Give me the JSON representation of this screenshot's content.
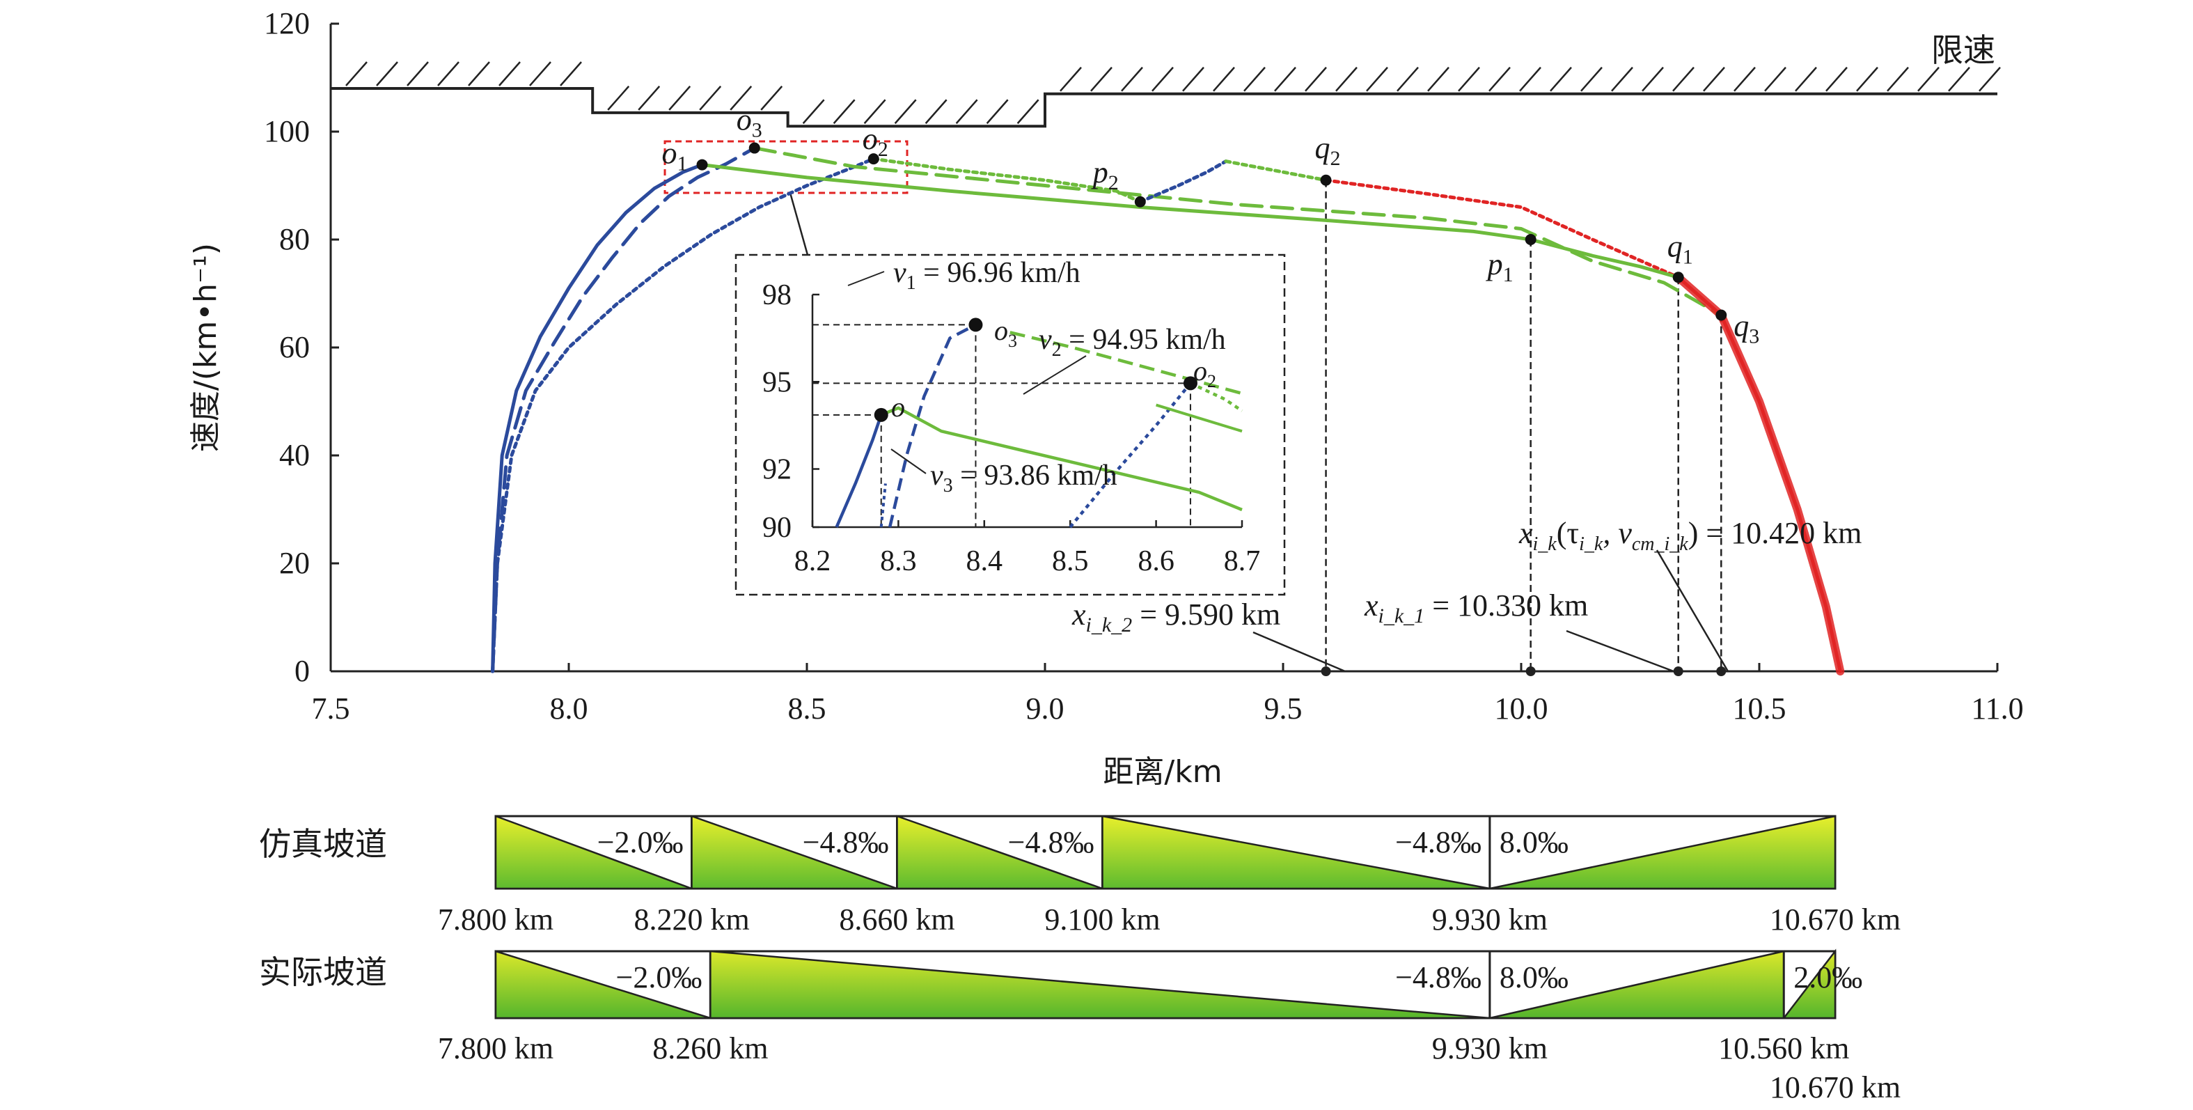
{
  "chart_data": {
    "type": "line",
    "xlabel": "距离/km",
    "ylabel": "速度/(km•h⁻¹)",
    "xlim": [
      7.5,
      11.0
    ],
    "ylim": [
      0,
      120
    ],
    "xticks": [
      7.5,
      8.0,
      8.5,
      9.0,
      9.5,
      10.0,
      10.5,
      11.0
    ],
    "xtick_labels": [
      "7.5",
      "8.0",
      "8.5",
      "9.0",
      "9.5",
      "10.0",
      "10.5",
      "11.0"
    ],
    "yticks": [
      0,
      20,
      40,
      60,
      80,
      100,
      120
    ],
    "ytick_labels": [
      "0",
      "20",
      "40",
      "60",
      "80",
      "100",
      "120"
    ],
    "speed_limit": {
      "label": "限速",
      "segments": [
        {
          "x0": 7.5,
          "x1": 8.05,
          "v": 108
        },
        {
          "x0": 8.05,
          "x1": 8.46,
          "v": 103.5
        },
        {
          "x0": 8.46,
          "x1": 9.0,
          "v": 101
        },
        {
          "x0": 9.0,
          "x1": 11.0,
          "v": 107
        }
      ]
    },
    "series": [
      {
        "name": "curve-1-accel",
        "color": "#2b4a9c",
        "dash": "solid",
        "x": [
          7.84,
          7.845,
          7.86,
          7.89,
          7.94,
          8.0,
          8.06,
          8.12,
          8.18,
          8.24,
          8.28
        ],
        "y": [
          0,
          20,
          40,
          52,
          62,
          71,
          79,
          85,
          89.5,
          92.5,
          93.86
        ]
      },
      {
        "name": "curve-3-accel",
        "color": "#2b4a9c",
        "dash": "longdash",
        "x": [
          7.84,
          7.85,
          7.87,
          7.91,
          7.97,
          8.03,
          8.09,
          8.15,
          8.21,
          8.27,
          8.33,
          8.39
        ],
        "y": [
          0,
          20,
          40,
          52,
          61,
          69.5,
          76.5,
          83,
          88,
          91.5,
          94,
          96.96
        ]
      },
      {
        "name": "curve-2-accel",
        "color": "#2b4a9c",
        "dash": "dotted",
        "x": [
          7.84,
          7.85,
          7.88,
          7.93,
          8.0,
          8.1,
          8.2,
          8.3,
          8.4,
          8.5,
          8.6,
          8.64
        ],
        "y": [
          0,
          20,
          40,
          52,
          60,
          68,
          75,
          81,
          86,
          90,
          93.5,
          94.95
        ]
      },
      {
        "name": "curve-1-cruise",
        "color": "#6dbb3c",
        "dash": "solid",
        "x": [
          8.28,
          8.5,
          8.8,
          9.2,
          9.6,
          9.9,
          10.02
        ],
        "y": [
          93.86,
          91.5,
          89,
          86,
          83.5,
          81.5,
          80
        ]
      },
      {
        "name": "curve-3-cruise",
        "color": "#6dbb3c",
        "dash": "longdash",
        "x": [
          8.39,
          8.6,
          9.0,
          9.4,
          9.8,
          10.0,
          10.15,
          10.3,
          10.42
        ],
        "y": [
          96.96,
          93.5,
          90,
          86.5,
          84,
          82,
          76,
          72,
          66
        ]
      },
      {
        "name": "curve-2-cruise",
        "color": "#6dbb3c",
        "dash": "dotted",
        "x": [
          8.64,
          8.8,
          9.0,
          9.15,
          9.2
        ],
        "y": [
          94.95,
          93,
          91,
          89,
          87
        ]
      },
      {
        "name": "curve-2-reaccel",
        "color": "#2b4a9c",
        "dash": "dotted",
        "x": [
          9.2,
          9.28,
          9.34,
          9.38
        ],
        "y": [
          87,
          90,
          92.5,
          94.5
        ]
      },
      {
        "name": "curve-2-coast",
        "color": "#6dbb3c",
        "dash": "dotted",
        "x": [
          9.38,
          9.5,
          9.59
        ],
        "y": [
          94.5,
          92.5,
          91
        ]
      },
      {
        "name": "curve-2-brake-approach",
        "color": "#e02424",
        "dash": "dotted",
        "x": [
          9.59,
          9.8,
          10.0,
          10.15,
          10.33
        ],
        "y": [
          91,
          88.5,
          86,
          80,
          73
        ]
      },
      {
        "name": "curve-1-coast",
        "color": "#6dbb3c",
        "dash": "solid",
        "x": [
          10.02,
          10.15,
          10.25,
          10.33
        ],
        "y": [
          80,
          77,
          75,
          73
        ]
      },
      {
        "name": "braking-envelope",
        "color": "#e02424",
        "dash": "solid",
        "x": [
          10.33,
          10.42,
          10.5,
          10.58,
          10.64,
          10.67
        ],
        "y": [
          73,
          66,
          50,
          30,
          12,
          0
        ]
      }
    ],
    "points": [
      {
        "label": "o",
        "sub": "1",
        "x": 8.28,
        "y": 93.86
      },
      {
        "label": "o",
        "sub": "3",
        "x": 8.39,
        "y": 96.96
      },
      {
        "label": "o",
        "sub": "2",
        "x": 8.64,
        "y": 94.95
      },
      {
        "label": "p",
        "sub": "2",
        "x": 9.2,
        "y": 87
      },
      {
        "label": "q",
        "sub": "2",
        "x": 9.59,
        "y": 91
      },
      {
        "label": "p",
        "sub": "1",
        "x": 10.02,
        "y": 80
      },
      {
        "label": "q",
        "sub": "1",
        "x": 10.33,
        "y": 73
      },
      {
        "label": "q",
        "sub": "3",
        "x": 10.42,
        "y": 66
      }
    ],
    "annotations": {
      "xk2_main": "x",
      "xk2_sub": "i_k_2",
      "xk2_value": " = 9.590 km",
      "xk1_main": "x",
      "xk1_sub": "i_k_1",
      "xk1_value": " = 10.330 km",
      "xk_main": "x",
      "xk_sub": "i_k",
      "xk_paren_open": "(τ",
      "xk_tau_sub": "i_k",
      "xk_comma": ", v",
      "xk_v_sub": "cm_i_k",
      "xk_value": ") = 10.420 km"
    },
    "inset": {
      "xlim": [
        8.2,
        8.7
      ],
      "ylim": [
        90,
        98
      ],
      "xticks": [
        "8.2",
        "8.3",
        "8.4",
        "8.5",
        "8.6",
        "8.7"
      ],
      "yticks": [
        "90",
        "92",
        "95",
        "98"
      ],
      "v1_label": "v",
      "v1_sub": "1",
      "v1_value": " = 96.96 km/h",
      "v2_label": "v",
      "v2_sub": "2",
      "v2_value": " = 94.95 km/h",
      "v3_label": "v",
      "v3_sub": "3",
      "v3_value": " = 93.86 km/h",
      "o_label": "o",
      "o3_label": "o",
      "o3_sub": "3",
      "o2_label": "o",
      "o2_sub": "2"
    }
  },
  "gradients": {
    "sim": {
      "label": "仿真坡道",
      "segments": [
        {
          "from": 7.8,
          "to": 8.22,
          "grade": "−2.0‰"
        },
        {
          "from": 8.22,
          "to": 8.66,
          "grade": "−4.8‰"
        },
        {
          "from": 8.66,
          "to": 9.1,
          "grade": "−4.8‰"
        },
        {
          "from": 9.1,
          "to": 9.93,
          "grade": "−4.8‰"
        },
        {
          "from": 9.93,
          "to": 10.67,
          "grade": "8.0‰"
        }
      ],
      "km_labels": [
        "7.800 km",
        "8.220 km",
        "8.660 km",
        "9.100 km",
        "9.930 km",
        "10.670 km"
      ]
    },
    "real": {
      "label": "实际坡道",
      "segments": [
        {
          "from": 7.8,
          "to": 8.26,
          "grade": "−2.0‰"
        },
        {
          "from": 8.26,
          "to": 9.93,
          "grade": "−4.8‰"
        },
        {
          "from": 9.93,
          "to": 10.56,
          "grade": "8.0‰"
        },
        {
          "from": 10.56,
          "to": 10.67,
          "grade": "2.0‰"
        }
      ],
      "km_labels": [
        "7.800 km",
        "8.260 km",
        "9.930 km",
        "10.560 km",
        "10.670 km"
      ]
    }
  }
}
